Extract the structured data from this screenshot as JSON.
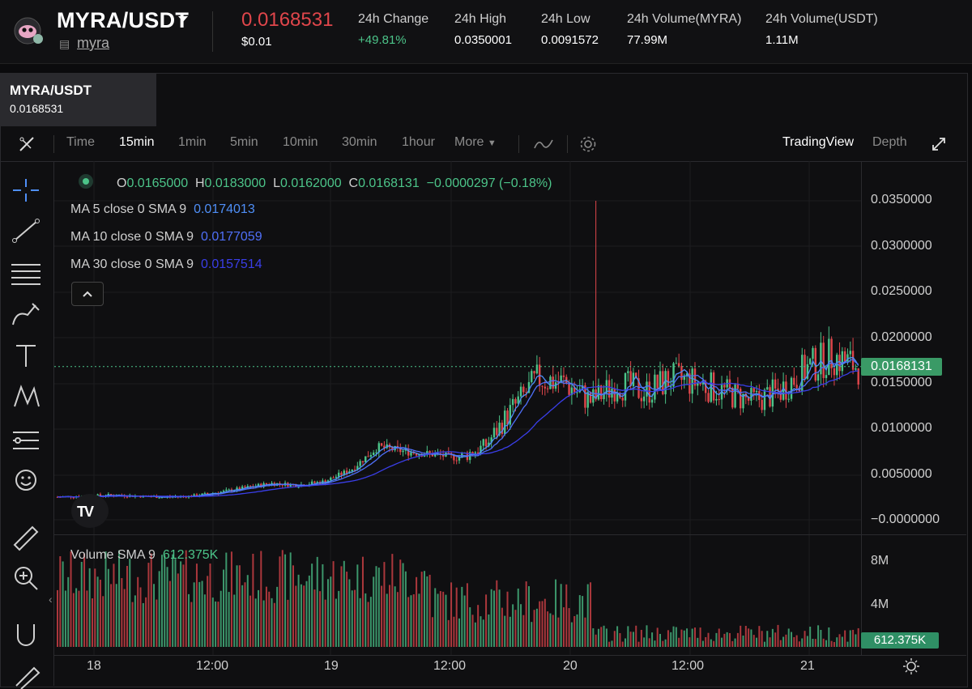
{
  "header": {
    "pair": "MYRA/USDT",
    "token_link": "myra",
    "price": "0.0168531",
    "price_usd": "$0.01",
    "stats": [
      {
        "label": "24h Change",
        "value": "+49.81%"
      },
      {
        "label": "24h High",
        "value": "0.0350001"
      },
      {
        "label": "24h Low",
        "value": "0.0091572"
      },
      {
        "label": "24h Volume(MYRA)",
        "value": "77.99M"
      },
      {
        "label": "24h Volume(USDT)",
        "value": "1.11M"
      }
    ],
    "colors": {
      "down": "#e0464b",
      "up": "#4cc489"
    }
  },
  "tab": {
    "title": "MYRA/USDT",
    "price": "0.0168531"
  },
  "toolbar": {
    "intervals": [
      "Time",
      "15min",
      "1min",
      "5min",
      "10min",
      "30min",
      "1hour"
    ],
    "active": "15min",
    "more": "More",
    "views": [
      "TradingView",
      "Depth"
    ],
    "active_view": "TradingView"
  },
  "legend": {
    "ohlc": {
      "o": "0.0165000",
      "h": "0.0183000",
      "l": "0.0162000",
      "c": "0.0168131",
      "change": "−0.0000297 (−0.18%)"
    },
    "ma": [
      {
        "label": "MA 5 close 0 SMA 9",
        "value": "0.0174013",
        "color": "#4f8ff7"
      },
      {
        "label": "MA 10 close 0 SMA 9",
        "value": "0.0177059",
        "color": "#4f6ff7"
      },
      {
        "label": "MA 30 close 0 SMA 9",
        "value": "0.0157514",
        "color": "#3a3ee8"
      }
    ],
    "volume": {
      "label": "Volume SMA 9",
      "value": "612.375K"
    }
  },
  "axes": {
    "price_ticks": [
      "0.0350000",
      "0.0300000",
      "0.0250000",
      "0.0200000",
      "0.0150000",
      "0.0100000",
      "0.0050000",
      "−0.0000000"
    ],
    "current_price": "0.0168131",
    "volume_ticks": [
      "8M",
      "4M"
    ],
    "current_volume": "612.375K",
    "time_ticks": [
      "18",
      "12:00",
      "19",
      "12:00",
      "20",
      "12:00",
      "21"
    ]
  },
  "chart_data": {
    "type": "candlestick",
    "x": [
      "18",
      "12:00",
      "19",
      "12:00",
      "20",
      "12:00",
      "21"
    ],
    "price_close": [
      0.0025,
      0.0026,
      0.0027,
      0.0026,
      0.0025,
      0.0026,
      0.003,
      0.0035,
      0.004,
      0.0038,
      0.0042,
      0.0055,
      0.008,
      0.0075,
      0.0072,
      0.0068,
      0.008,
      0.012,
      0.0155,
      0.015,
      0.013,
      0.015,
      0.014,
      0.0155,
      0.015,
      0.014,
      0.013,
      0.014,
      0.0165,
      0.018,
      0.0168
    ],
    "price_high": 0.0350001,
    "ylim": [
      0,
      0.035
    ],
    "volume_sma9": 612375
  }
}
